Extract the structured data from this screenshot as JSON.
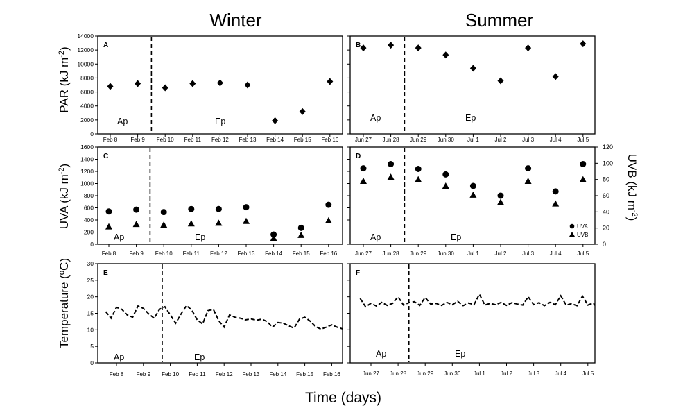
{
  "titles": {
    "winter": "Winter",
    "summer": "Summer"
  },
  "axis_titles": {
    "par": "PAR (kJ m-2)",
    "uva": "UVA (kJ m-2)",
    "uvb": "UVB (kJ m-2)",
    "temperature": "Temperature (ºC)",
    "time": "Time (days)"
  },
  "chart_data": [
    {
      "panel": "A",
      "type": "scatter",
      "season": "Winter",
      "ylim": [
        0,
        14000
      ],
      "yticks": [
        0,
        2000,
        4000,
        6000,
        8000,
        10000,
        12000,
        14000
      ],
      "categories": [
        "Feb 8",
        "Feb 9",
        "Feb 10",
        "Feb 11",
        "Feb 12",
        "Feb 13",
        "Feb 14",
        "Feb 15",
        "Feb 16"
      ],
      "period_labels": [
        "Ap",
        "Ep"
      ],
      "divider_after_index": 1,
      "series": [
        {
          "marker": "diamond",
          "values": [
            6800,
            7200,
            6600,
            7200,
            7300,
            7000,
            1900,
            3200,
            7500
          ]
        }
      ]
    },
    {
      "panel": "B",
      "type": "scatter",
      "season": "Summer",
      "ylim": [
        0,
        14000
      ],
      "categories": [
        "Jun 27",
        "Jun 28",
        "Jun 29",
        "Jun 30",
        "Jul 1",
        "Jul 2",
        "Jul 3",
        "Jul 4",
        "Jul 5"
      ],
      "period_labels": [
        "Ap",
        "Ep"
      ],
      "divider_after_index": 1,
      "series": [
        {
          "marker": "diamond",
          "values": [
            12300,
            12700,
            12300,
            11300,
            9400,
            7600,
            12300,
            8200,
            12900
          ]
        }
      ]
    },
    {
      "panel": "C",
      "type": "scatter",
      "season": "Winter",
      "ylim": [
        0,
        1600
      ],
      "yticks": [
        0,
        200,
        400,
        600,
        800,
        1000,
        1200,
        1400,
        1600
      ],
      "categories": [
        "Feb 8",
        "Feb 9",
        "Feb 10",
        "Feb 11",
        "Feb 12",
        "Feb 13",
        "Feb 14",
        "Feb 15",
        "Feb 16"
      ],
      "period_labels": [
        "Ap",
        "Ep"
      ],
      "divider_after_index": 1,
      "series": [
        {
          "name": "UVA",
          "marker": "circle",
          "values": [
            540,
            570,
            530,
            580,
            580,
            610,
            160,
            270,
            650
          ]
        },
        {
          "name": "UVB",
          "marker": "triangle",
          "values": [
            290,
            330,
            320,
            340,
            350,
            380,
            100,
            150,
            390
          ]
        }
      ]
    },
    {
      "panel": "D",
      "type": "scatter",
      "season": "Summer",
      "ylim": [
        0,
        1600
      ],
      "y2lim": [
        0,
        120
      ],
      "y2ticks": [
        0,
        20,
        40,
        60,
        80,
        100,
        120
      ],
      "categories": [
        "Jun 27",
        "Jun 28",
        "Jun 29",
        "Jun 30",
        "Jul 1",
        "Jul 2",
        "Jul 3",
        "Jul 4",
        "Jul 5"
      ],
      "period_labels": [
        "Ap",
        "Ep"
      ],
      "divider_after_index": 1,
      "legend": {
        "position": "bottom-right",
        "entries": [
          "UVA",
          "UVB"
        ]
      },
      "series": [
        {
          "name": "UVA",
          "marker": "circle",
          "axis": "left",
          "values": [
            1250,
            1320,
            1240,
            1150,
            960,
            800,
            1250,
            870,
            1320
          ]
        },
        {
          "name": "UVB",
          "marker": "triangle",
          "axis": "right",
          "values": [
            78,
            83,
            80,
            72,
            61,
            52,
            78,
            50,
            80
          ]
        }
      ]
    },
    {
      "panel": "E",
      "type": "line",
      "season": "Winter",
      "ylim": [
        0,
        30
      ],
      "yticks": [
        0,
        5,
        10,
        15,
        20,
        25,
        30
      ],
      "categories": [
        "Feb 8",
        "Feb 9",
        "Feb 10",
        "Feb 11",
        "Feb 12",
        "Feb 13",
        "Feb 14",
        "Feb 15",
        "Feb 16"
      ],
      "period_labels": [
        "Ap",
        "Ep"
      ],
      "divider_x": 1.7,
      "series": [
        {
          "style": "dashed",
          "x": [
            -0.4,
            -0.2,
            0,
            0.2,
            0.4,
            0.6,
            0.8,
            1.0,
            1.2,
            1.4,
            1.6,
            1.8,
            2.0,
            2.2,
            2.4,
            2.6,
            2.8,
            3.0,
            3.2,
            3.4,
            3.6,
            3.8,
            4.0,
            4.2,
            4.4,
            4.6,
            4.8,
            5.0,
            5.2,
            5.4,
            5.6,
            5.8,
            6.0,
            6.2,
            6.4,
            6.6,
            6.8,
            7.0,
            7.2,
            7.4,
            7.6,
            7.8,
            8.0,
            8.2,
            8.4
          ],
          "values": [
            15.5,
            13.5,
            16.8,
            16.2,
            14.5,
            13.8,
            17.2,
            16.5,
            14.8,
            13.5,
            16.2,
            17.0,
            14.5,
            12.0,
            14.8,
            17.3,
            16.0,
            13.0,
            11.8,
            15.8,
            16.2,
            12.8,
            10.8,
            14.5,
            13.8,
            13.5,
            13.0,
            13.3,
            12.9,
            13.2,
            12.5,
            10.8,
            12.2,
            12.0,
            11.2,
            10.5,
            13.2,
            13.8,
            12.6,
            11.0,
            10.2,
            10.8,
            11.5,
            10.8,
            10.3
          ]
        }
      ]
    },
    {
      "panel": "F",
      "type": "line",
      "season": "Summer",
      "ylim": [
        0,
        30
      ],
      "categories": [
        "Jun 27",
        "Jun 28",
        "Jun 29",
        "Jun 30",
        "Jul 1",
        "Jul 2",
        "Jul 3",
        "Jul 4",
        "Jul 5"
      ],
      "period_labels": [
        "Ap",
        "Ep"
      ],
      "divider_x": 1.4,
      "series": [
        {
          "style": "dashed",
          "x": [
            -0.4,
            -0.2,
            0,
            0.2,
            0.4,
            0.6,
            0.8,
            1.0,
            1.2,
            1.4,
            1.6,
            1.8,
            2.0,
            2.2,
            2.4,
            2.6,
            2.8,
            3.0,
            3.2,
            3.4,
            3.6,
            3.8,
            4.0,
            4.2,
            4.4,
            4.6,
            4.8,
            5.0,
            5.2,
            5.4,
            5.6,
            5.8,
            6.0,
            6.2,
            6.4,
            6.6,
            6.8,
            7.0,
            7.2,
            7.4,
            7.6,
            7.8,
            8.0,
            8.2,
            8.4
          ],
          "values": [
            19.5,
            17.0,
            18.0,
            17.2,
            18.3,
            17.4,
            18.0,
            20.0,
            17.5,
            18.2,
            18.5,
            17.4,
            19.8,
            17.8,
            18.0,
            17.4,
            18.3,
            17.6,
            18.6,
            17.3,
            18.1,
            17.6,
            20.8,
            17.5,
            18.0,
            17.6,
            18.3,
            17.4,
            18.2,
            17.8,
            17.5,
            20.0,
            17.6,
            18.2,
            17.3,
            18.3,
            17.6,
            20.3,
            17.5,
            17.9,
            17.3,
            20.2,
            17.5,
            18.1,
            17.4
          ]
        }
      ]
    }
  ]
}
